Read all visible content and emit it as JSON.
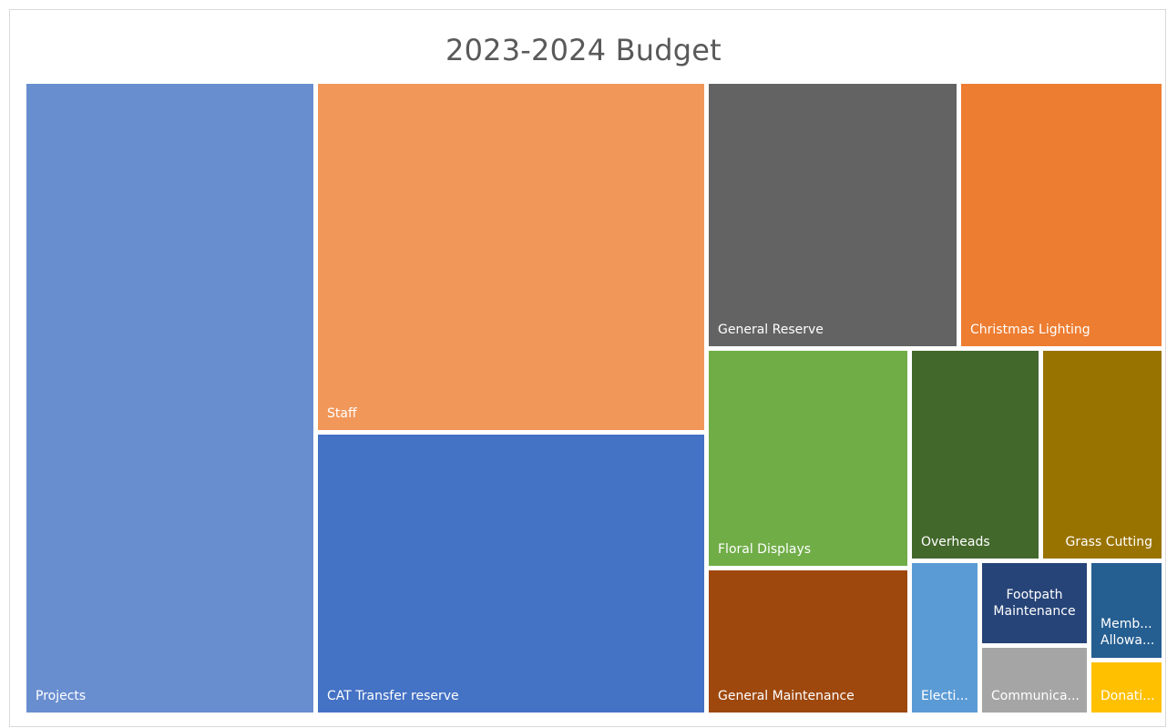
{
  "chart_data": {
    "type": "treemap",
    "title": "2023-2024 Budget",
    "nodes": [
      {
        "name": "Projects",
        "label": "Projects",
        "color": "#698ED0"
      },
      {
        "name": "Staff",
        "label": "Staff",
        "color": "#F1975A"
      },
      {
        "name": "CAT Transfer reserve",
        "label": "CAT Transfer reserve",
        "color": "#4472C4"
      },
      {
        "name": "General Reserve",
        "label": "General Reserve",
        "color": "#636363"
      },
      {
        "name": "Christmas Lighting",
        "label": "Christmas Lighting",
        "color": "#ED7D31"
      },
      {
        "name": "Floral Displays",
        "label": "Floral Displays",
        "color": "#70AD47"
      },
      {
        "name": "Overheads",
        "label": "Overheads",
        "color": "#43682B"
      },
      {
        "name": "Grass Cutting",
        "label": "Grass Cutting",
        "color": "#997300"
      },
      {
        "name": "General Maintenance",
        "label": "General Maintenance",
        "color": "#9E480E"
      },
      {
        "name": "Elections",
        "label": "Electi...",
        "color": "#5B9BD5"
      },
      {
        "name": "Footpath Maintenance",
        "label": "Footpath Maintenance",
        "color": "#264478"
      },
      {
        "name": "Members Allowance",
        "label": "Memb... Allowa...",
        "color": "#255E91"
      },
      {
        "name": "Communications",
        "label": "Communica...",
        "color": "#A5A5A5"
      },
      {
        "name": "Donations",
        "label": "Donati...",
        "color": "#FFC000"
      }
    ]
  }
}
